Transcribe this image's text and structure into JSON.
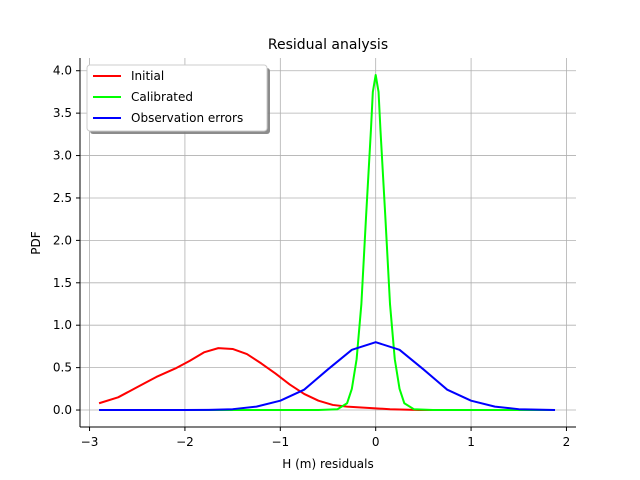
{
  "chart_data": {
    "type": "line",
    "title": "Residual analysis",
    "xlabel": "H (m) residuals",
    "ylabel": "PDF",
    "xlim": [
      -3.1,
      2.1
    ],
    "ylim": [
      -0.2,
      4.15
    ],
    "x_ticks": [
      -3,
      -2,
      -1,
      0,
      1,
      2
    ],
    "x_tick_labels": [
      "−3",
      "−2",
      "−1",
      "0",
      "1",
      "2"
    ],
    "y_ticks": [
      0.0,
      0.5,
      1.0,
      1.5,
      2.0,
      2.5,
      3.0,
      3.5,
      4.0
    ],
    "y_tick_labels": [
      "0.0",
      "0.5",
      "1.0",
      "1.5",
      "2.0",
      "2.5",
      "3.0",
      "3.5",
      "4.0"
    ],
    "grid": true,
    "legend_position": "top-left",
    "series": [
      {
        "name": "Initial",
        "color": "#ff0000",
        "x": [
          -2.9,
          -2.7,
          -2.5,
          -2.3,
          -2.1,
          -1.95,
          -1.8,
          -1.65,
          -1.5,
          -1.35,
          -1.2,
          -1.05,
          -0.9,
          -0.75,
          -0.6,
          -0.45,
          -0.3,
          -0.15,
          0.0,
          0.15,
          0.3,
          0.45,
          0.6
        ],
        "y": [
          0.08,
          0.15,
          0.27,
          0.39,
          0.49,
          0.58,
          0.68,
          0.73,
          0.72,
          0.66,
          0.55,
          0.43,
          0.3,
          0.19,
          0.11,
          0.06,
          0.04,
          0.03,
          0.02,
          0.01,
          0.005,
          0.0,
          0.0
        ]
      },
      {
        "name": "Calibrated",
        "color": "#00ff00",
        "x": [
          -2.9,
          -0.6,
          -0.4,
          -0.3,
          -0.25,
          -0.2,
          -0.15,
          -0.1,
          -0.05,
          -0.03,
          0.0,
          0.03,
          0.05,
          0.1,
          0.15,
          0.2,
          0.25,
          0.3,
          0.4,
          0.6,
          1.88
        ],
        "y": [
          0.0,
          0.0,
          0.01,
          0.08,
          0.25,
          0.6,
          1.25,
          2.3,
          3.3,
          3.75,
          3.95,
          3.75,
          3.3,
          2.3,
          1.25,
          0.6,
          0.25,
          0.08,
          0.01,
          0.0,
          0.0
        ]
      },
      {
        "name": "Observation errors",
        "color": "#0000ff",
        "x": [
          -2.9,
          -2.5,
          -2.0,
          -1.75,
          -1.5,
          -1.25,
          -1.0,
          -0.75,
          -0.5,
          -0.25,
          0.0,
          0.25,
          0.5,
          0.75,
          1.0,
          1.25,
          1.5,
          1.88
        ],
        "y": [
          0.0,
          0.0,
          0.0,
          0.002,
          0.01,
          0.04,
          0.11,
          0.24,
          0.48,
          0.71,
          0.8,
          0.71,
          0.48,
          0.24,
          0.11,
          0.04,
          0.01,
          0.0
        ]
      }
    ]
  }
}
